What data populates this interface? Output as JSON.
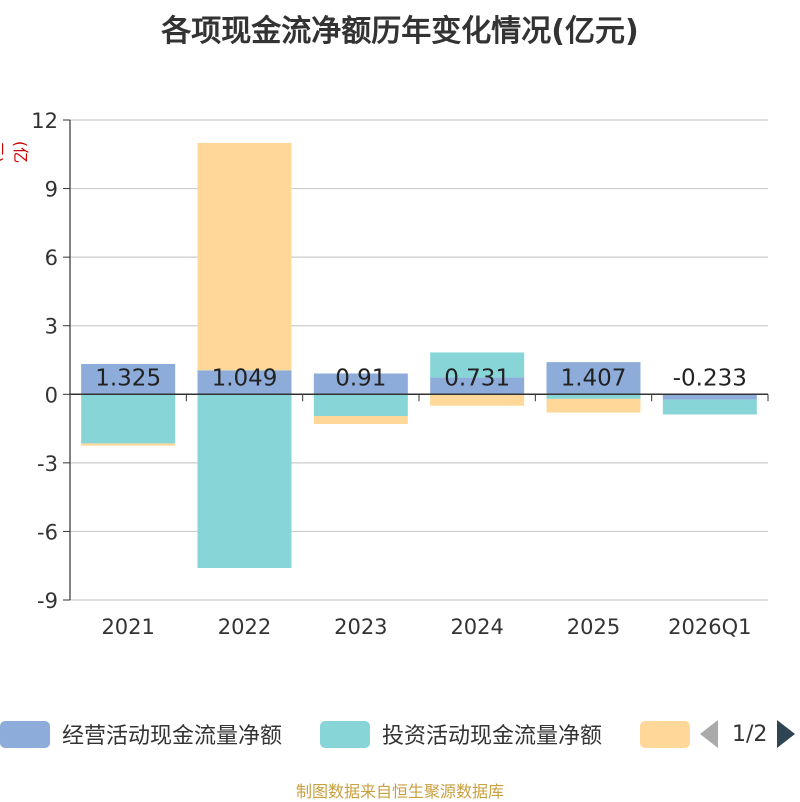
{
  "chart_data": {
    "type": "bar",
    "stacked": true,
    "title": "各项现金流净额历年变化情况(亿元)",
    "ylabel": "(亿元)",
    "xlabel": "",
    "ylim": [
      -9,
      12
    ],
    "yticks": [
      -9,
      -6,
      -3,
      0,
      3,
      6,
      9,
      12
    ],
    "grid": true,
    "categories": [
      "2021",
      "2022",
      "2023",
      "2024",
      "2025",
      "2026Q1"
    ],
    "series": [
      {
        "name": "经营活动现金流量净额",
        "color": "#8eacd9",
        "values": [
          1.325,
          1.049,
          0.91,
          0.731,
          1.407,
          -0.233
        ],
        "show_labels": true
      },
      {
        "name": "投资活动现金流量净额",
        "color": "#88d5d8",
        "values": [
          -2.15,
          -7.6,
          -0.95,
          1.1,
          -0.2,
          -0.65
        ],
        "show_labels": false
      },
      {
        "name": "",
        "color": "#ffd899",
        "values": [
          -0.1,
          9.95,
          -0.35,
          -0.5,
          -0.6,
          0
        ],
        "show_labels": false
      }
    ]
  },
  "legend": {
    "items": [
      {
        "label": "经营活动现金流量净额",
        "color": "#8eacd9"
      },
      {
        "label": "投资活动现金流量净额",
        "color": "#88d5d8"
      },
      {
        "label": "",
        "color": "#ffd899"
      }
    ],
    "page": "1/2"
  },
  "footer": {
    "source": "制图数据来自恒生聚源数据库"
  }
}
